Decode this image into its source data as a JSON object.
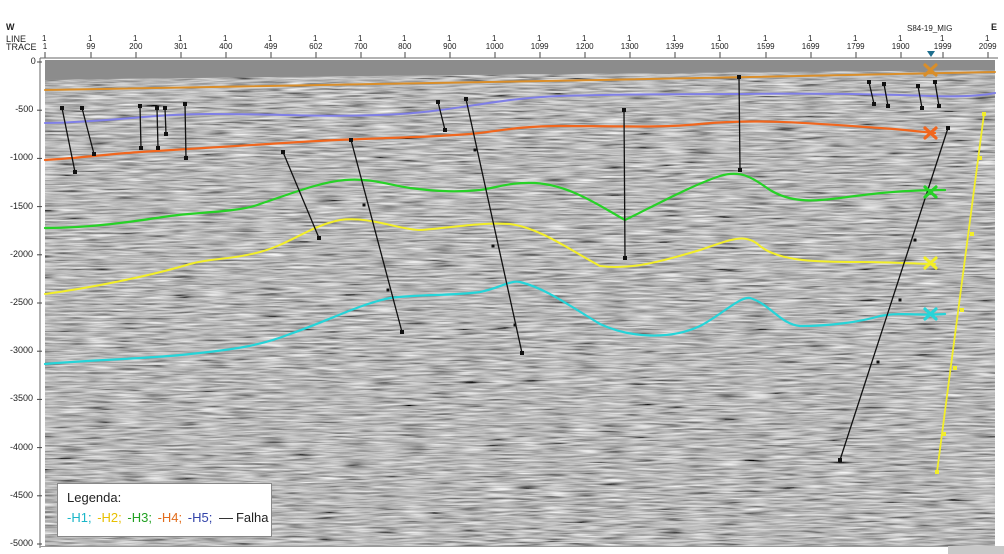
{
  "header": {
    "west_label": "W",
    "east_label": "E",
    "line_label": "LINE",
    "trace_label": "TRACE",
    "well_name": "S84-19_MIG",
    "line_values": [
      "1",
      "1",
      "1",
      "1",
      "1",
      "1",
      "1",
      "1",
      "1",
      "1",
      "1",
      "1",
      "1",
      "1",
      "1",
      "1",
      "1",
      "1",
      "1",
      "1",
      "1",
      "1"
    ],
    "trace_values": [
      "1",
      "99",
      "200",
      "301",
      "400",
      "499",
      "602",
      "700",
      "800",
      "900",
      "1000",
      "1099",
      "1200",
      "1300",
      "1399",
      "1500",
      "1599",
      "1699",
      "1799",
      "1900",
      "1999",
      "2099"
    ]
  },
  "depth_ticks": [
    "0",
    "-500",
    "-1000",
    "-1500",
    "-2000",
    "-2500",
    "-3000",
    "-3500",
    "-4000",
    "-4500",
    "-5000"
  ],
  "legend": {
    "title": "Legenda:",
    "items": [
      {
        "label": "-H1;",
        "color": "#19b6c8"
      },
      {
        "label": "-H2;",
        "color": "#e8c000"
      },
      {
        "label": "-H3;",
        "color": "#22a122"
      },
      {
        "label": "-H4;",
        "color": "#e26d1c"
      },
      {
        "label": "-H5;",
        "color": "#3344aa"
      }
    ],
    "fault_label": "Falha"
  },
  "colors": {
    "h1": "#26d4d8",
    "h2": "#f2ee2a",
    "h3": "#27d127",
    "h4": "#f0661e",
    "h5": "#7f7fe6",
    "top": "#d98e2a",
    "fault": "#111111",
    "well": "#f2ee2a"
  }
}
